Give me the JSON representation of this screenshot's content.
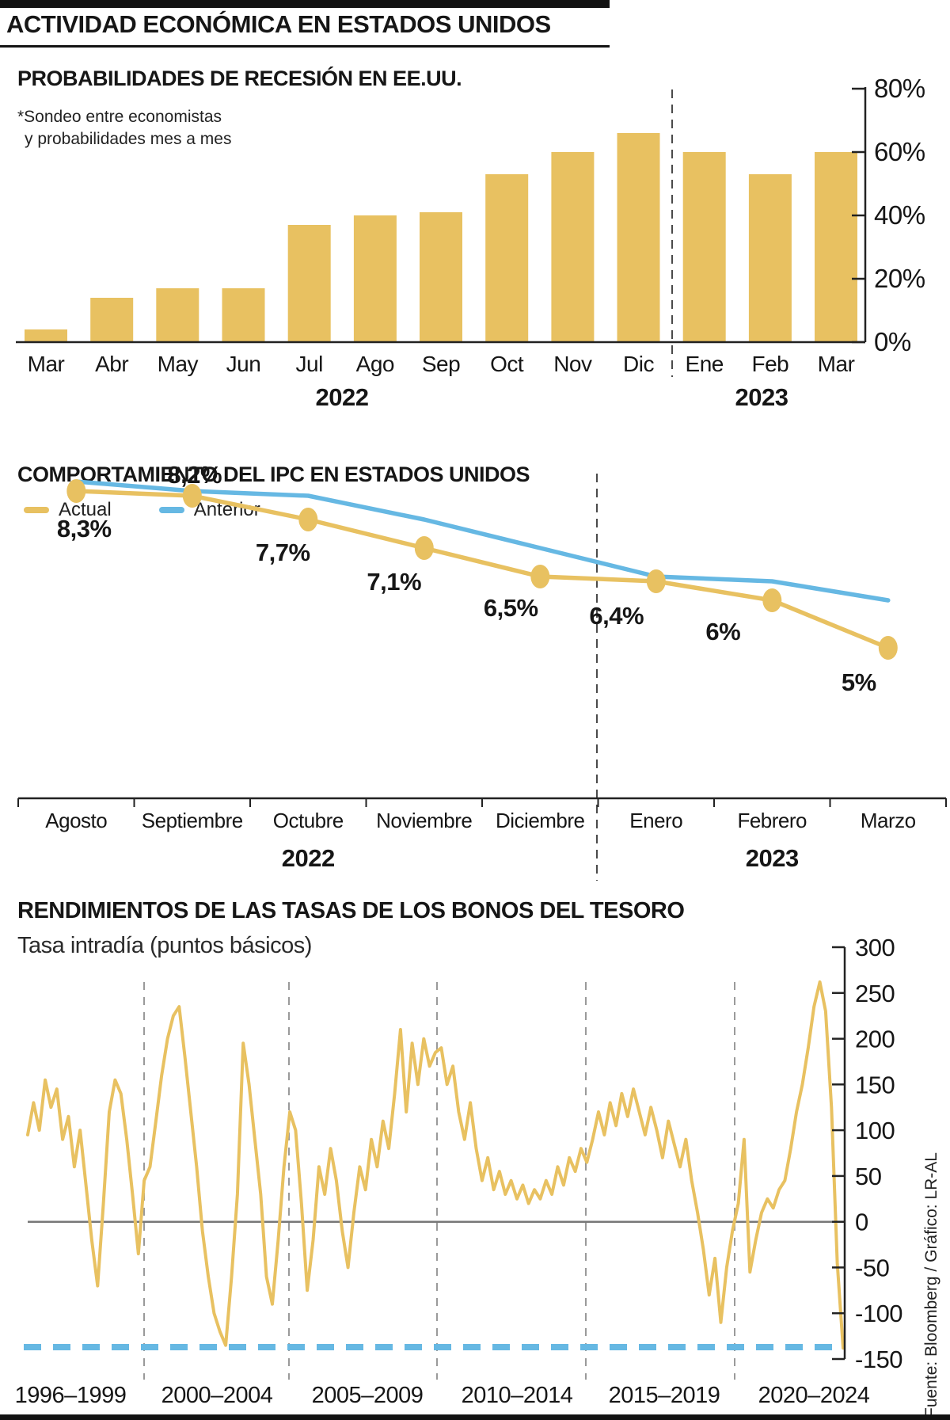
{
  "header": {
    "title": "ACTIVIDAD ECONÓMICA EN ESTADOS UNIDOS"
  },
  "source": "Fuente: Bloomberg / Gráfico: LR-AL",
  "colors": {
    "accent_yellow": "#E8C161",
    "accent_blue": "#66B8E3",
    "text": "#161616",
    "grid_gray": "#9a9a9a"
  },
  "legend": {
    "actual": "Actual",
    "anterior": "Anterior"
  },
  "chart_data": [
    {
      "id": "recession_probabilities",
      "type": "bar",
      "title": "PROBABILIDADES DE RECESIÓN EN EE.UU.",
      "note_lines": [
        "*Sondeo entre economistas",
        "y probabilidades mes a mes"
      ],
      "categories": [
        "Mar",
        "Abr",
        "May",
        "Jun",
        "Jul",
        "Ago",
        "Sep",
        "Oct",
        "Nov",
        "Dic",
        "Ene",
        "Feb",
        "Mar"
      ],
      "values": [
        4,
        14,
        17,
        17,
        37,
        40,
        41,
        53,
        60,
        66,
        60,
        53,
        60
      ],
      "unit": "%",
      "ylim": [
        0,
        80
      ],
      "yticks": [
        "0%",
        "20%",
        "40%",
        "60%",
        "80%"
      ],
      "year_labels": [
        {
          "label": "2022",
          "span": "Mar–Dic"
        },
        {
          "label": "2023",
          "span": "Ene–Mar"
        }
      ],
      "divider_after": "Dic",
      "legend_position": "none",
      "grid": false
    },
    {
      "id": "ipc_estados_unidos",
      "type": "line",
      "title": "COMPORTAMIENTO DEL IPC EN ESTADOS UNIDOS",
      "categories": [
        "Agosto",
        "Septiembre",
        "Octubre",
        "Noviembre",
        "Diciembre",
        "Enero",
        "Febrero",
        "Marzo"
      ],
      "series": [
        {
          "name": "Actual",
          "color": "#E8C161",
          "values": [
            8.3,
            8.2,
            7.7,
            7.1,
            6.5,
            6.4,
            6.0,
            5.0
          ],
          "point_labels": [
            "8,3%",
            "8,2%",
            "7,7%",
            "7,1%",
            "6,5%",
            "6,4%",
            "6%",
            "5%"
          ],
          "markers": true
        },
        {
          "name": "Anterior",
          "color": "#66B8E3",
          "values": [
            8.5,
            8.3,
            8.2,
            7.7,
            7.1,
            6.5,
            6.4,
            6.0
          ],
          "markers": false
        }
      ],
      "ylim": [
        4.5,
        9.0
      ],
      "year_labels": [
        {
          "label": "2022",
          "under": "Octubre"
        },
        {
          "label": "2023",
          "under": "Febrero"
        }
      ],
      "divider_after": "Diciembre",
      "legend_position": "top-left",
      "grid": false
    },
    {
      "id": "rendimientos_bonos_tesoro",
      "type": "line",
      "title": "RENDIMIENTOS DE LAS TASAS DE LOS BONOS DEL TESORO",
      "subtitle": "Tasa intradía (puntos básicos)",
      "ylabel": "puntos básicos",
      "ylim": [
        -150,
        300
      ],
      "yticks": [
        "300",
        "250",
        "200",
        "150",
        "100",
        "50",
        "0",
        "-50",
        "-100",
        "-150"
      ],
      "ytick_values": [
        300,
        250,
        200,
        150,
        100,
        50,
        0,
        -50,
        -100,
        -150
      ],
      "x_period_labels": [
        "1996–1999",
        "2000–2004",
        "2005–2009",
        "2010–2014",
        "2015–2019",
        "2020–2024"
      ],
      "threshold_dashed_value": -137,
      "zero_line": true,
      "grid": "dashed-vertical-period-separators",
      "values": [
        95,
        130,
        100,
        155,
        125,
        145,
        90,
        115,
        60,
        100,
        40,
        -20,
        -70,
        20,
        120,
        155,
        140,
        90,
        30,
        -35,
        45,
        60,
        110,
        160,
        200,
        225,
        235,
        180,
        120,
        60,
        -10,
        -60,
        -100,
        -120,
        -135,
        -60,
        30,
        195,
        150,
        90,
        30,
        -60,
        -90,
        -20,
        60,
        120,
        100,
        20,
        -75,
        -20,
        60,
        30,
        80,
        45,
        -10,
        -50,
        10,
        60,
        35,
        90,
        60,
        110,
        80,
        140,
        210,
        120,
        195,
        150,
        200,
        170,
        185,
        190,
        150,
        170,
        120,
        90,
        130,
        80,
        45,
        70,
        35,
        55,
        30,
        45,
        25,
        40,
        20,
        35,
        25,
        45,
        30,
        60,
        40,
        70,
        55,
        80,
        65,
        90,
        120,
        95,
        130,
        105,
        140,
        115,
        145,
        120,
        95,
        125,
        100,
        70,
        110,
        85,
        60,
        90,
        45,
        10,
        -30,
        -80,
        -40,
        -110,
        -50,
        -10,
        20,
        90,
        -55,
        -20,
        10,
        25,
        15,
        35,
        45,
        80,
        120,
        150,
        190,
        235,
        262,
        230,
        125,
        -45,
        -138
      ]
    }
  ]
}
